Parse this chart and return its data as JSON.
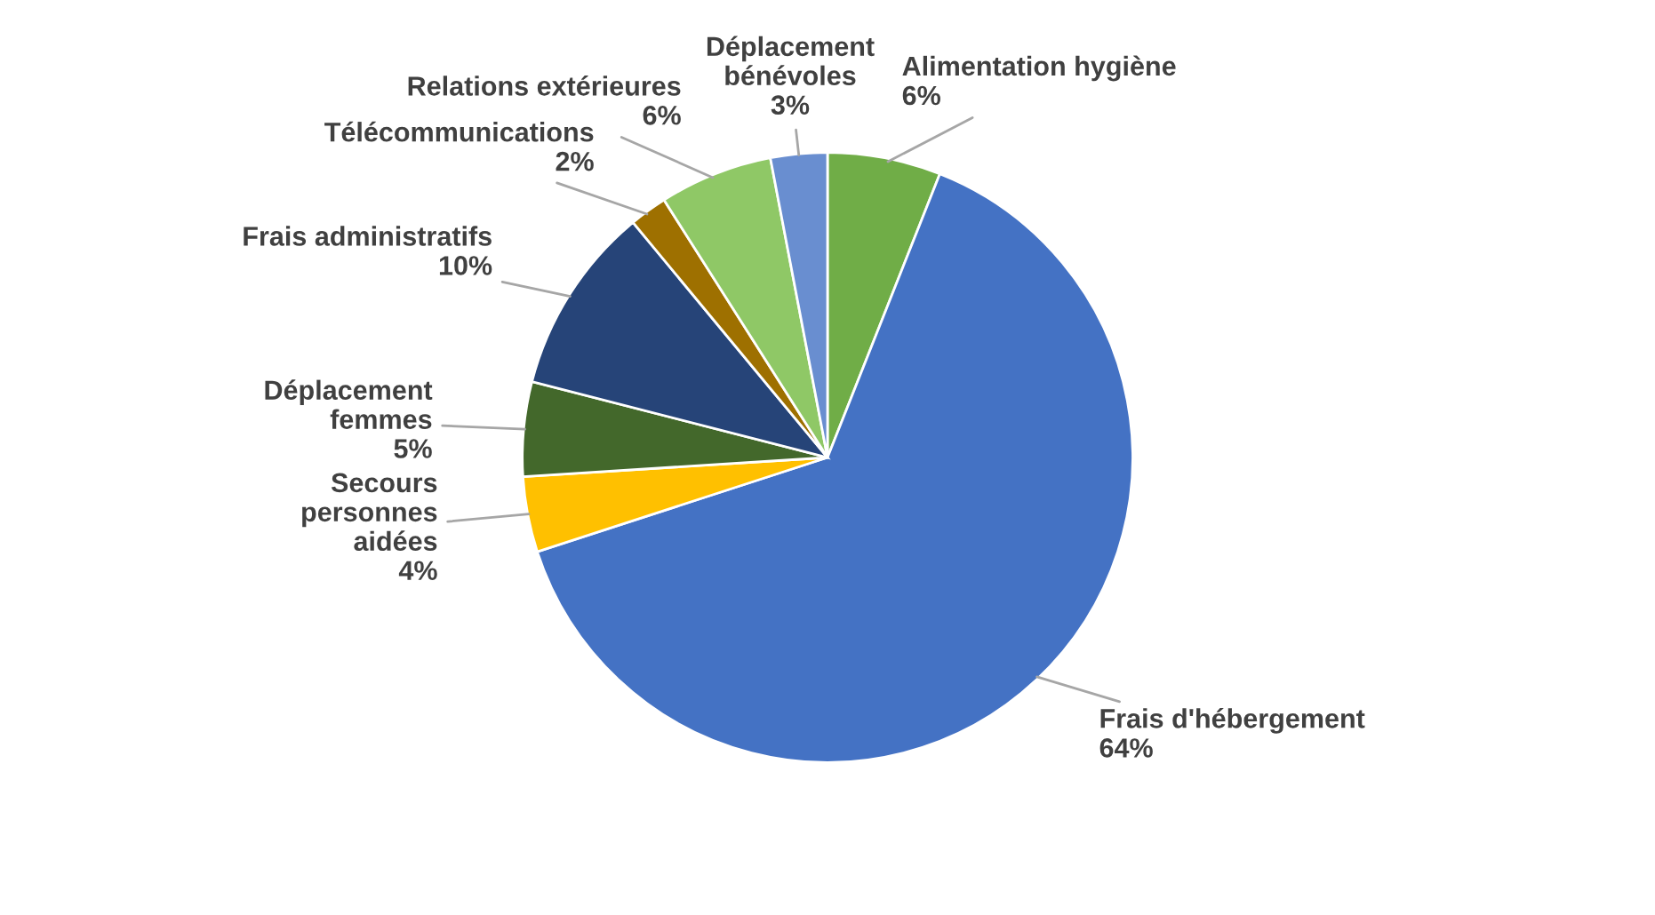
{
  "chart_data": {
    "type": "pie",
    "categories": [
      "Alimentation hygiène",
      "Frais d'hébergement",
      "Secours\npersonnes\naidées",
      "Déplacement\nfemmes",
      "Frais administratifs",
      "Télécommunications",
      "Relations extérieures",
      "Déplacement\nbénévoles"
    ],
    "values": [
      6,
      64,
      4,
      5,
      10,
      2,
      6,
      3
    ],
    "colors": [
      "#70ad47",
      "#4472c4",
      "#ffc000",
      "#43682b",
      "#264478",
      "#9e7000",
      "#8fc866",
      "#698ed0"
    ],
    "value_labels": [
      "6%",
      "64%",
      "4%",
      "5%",
      "10%",
      "2%",
      "6%",
      "3%"
    ],
    "legend": false
  }
}
